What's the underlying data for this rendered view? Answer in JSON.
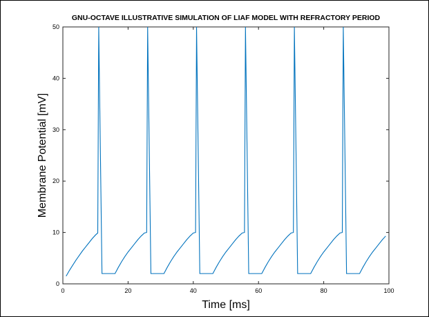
{
  "chart_data": {
    "type": "line",
    "title": "GNU-OCTAVE ILLUSTRATIVE SIMULATION OF LIAF MODEL WITH REFRACTORY PERIOD",
    "xlabel": "Time [ms]",
    "ylabel": "Membrane Potential  [mV]",
    "xlim": [
      0,
      100
    ],
    "ylim": [
      0,
      50
    ],
    "xticks": [
      0,
      20,
      40,
      60,
      80,
      100
    ],
    "yticks": [
      0,
      10,
      20,
      30,
      40,
      50
    ],
    "grid": false,
    "series_color": "#0072BD",
    "series": [
      {
        "x": [
          1,
          2,
          3,
          4,
          5,
          6,
          7,
          8,
          9,
          10,
          10.7,
          11,
          12,
          13,
          14,
          15,
          16,
          17,
          18,
          19,
          20,
          21,
          22,
          23,
          24,
          25,
          25.7,
          26,
          27,
          28,
          29,
          30,
          31,
          32,
          33,
          34,
          35,
          36,
          37,
          38,
          39,
          40,
          40.7,
          41,
          42,
          43,
          44,
          45,
          46,
          47,
          48,
          49,
          50,
          51,
          52,
          53,
          54,
          55,
          55.7,
          56,
          57,
          58,
          59,
          60,
          61,
          62,
          63,
          64,
          65,
          66,
          67,
          68,
          69,
          70,
          70.7,
          71,
          72,
          73,
          74,
          75,
          76,
          77,
          78,
          79,
          80,
          81,
          82,
          83,
          84,
          85,
          85.7,
          86,
          87,
          88,
          89,
          90,
          91,
          92,
          93,
          94,
          95,
          96,
          97,
          98,
          99
        ],
        "y": [
          1.5,
          2.6,
          3.6,
          4.6,
          5.5,
          6.4,
          7.2,
          8.0,
          8.8,
          9.5,
          9.9,
          50,
          2,
          2,
          2,
          2,
          2,
          3.2,
          4.3,
          5.3,
          6.2,
          7.0,
          7.8,
          8.6,
          9.3,
          9.9,
          10.0,
          50,
          2,
          2,
          2,
          2,
          2,
          3.2,
          4.3,
          5.3,
          6.2,
          7.0,
          7.8,
          8.6,
          9.3,
          9.9,
          10.0,
          50,
          2,
          2,
          2,
          2,
          2,
          3.2,
          4.3,
          5.3,
          6.2,
          7.0,
          7.8,
          8.6,
          9.3,
          9.9,
          10.0,
          50,
          2,
          2,
          2,
          2,
          2,
          3.2,
          4.3,
          5.3,
          6.2,
          7.0,
          7.8,
          8.6,
          9.3,
          9.9,
          10.0,
          50,
          2,
          2,
          2,
          2,
          2,
          3.2,
          4.3,
          5.3,
          6.2,
          7.0,
          7.8,
          8.6,
          9.3,
          9.9,
          10.0,
          50,
          2,
          2,
          2,
          2,
          2,
          3.2,
          4.3,
          5.3,
          6.2,
          7.0,
          7.8,
          8.6,
          9.3
        ]
      }
    ]
  }
}
